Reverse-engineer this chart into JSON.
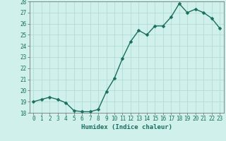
{
  "x": [
    0,
    1,
    2,
    3,
    4,
    5,
    6,
    7,
    8,
    9,
    10,
    11,
    12,
    13,
    14,
    15,
    16,
    17,
    18,
    19,
    20,
    21,
    22,
    23
  ],
  "y": [
    19.0,
    19.2,
    19.4,
    19.2,
    18.9,
    18.2,
    18.1,
    18.1,
    18.3,
    19.9,
    21.1,
    22.9,
    24.4,
    25.4,
    25.0,
    25.8,
    25.8,
    26.6,
    27.8,
    27.0,
    27.3,
    27.0,
    26.5,
    25.6
  ],
  "xlabel": "Humidex (Indice chaleur)",
  "ylim": [
    18,
    28
  ],
  "xlim": [
    -0.5,
    23.5
  ],
  "yticks": [
    18,
    19,
    20,
    21,
    22,
    23,
    24,
    25,
    26,
    27,
    28
  ],
  "xticks": [
    0,
    1,
    2,
    3,
    4,
    5,
    6,
    7,
    8,
    9,
    10,
    11,
    12,
    13,
    14,
    15,
    16,
    17,
    18,
    19,
    20,
    21,
    22,
    23
  ],
  "line_color": "#1a6e5e",
  "marker_color": "#1a6e5e",
  "bg_color": "#cff0eb",
  "grid_color": "#aad8d0",
  "border_color": "#666666",
  "line_width": 1.0,
  "marker_size": 2.5,
  "xlabel_fontsize": 6.5,
  "tick_fontsize": 5.5
}
